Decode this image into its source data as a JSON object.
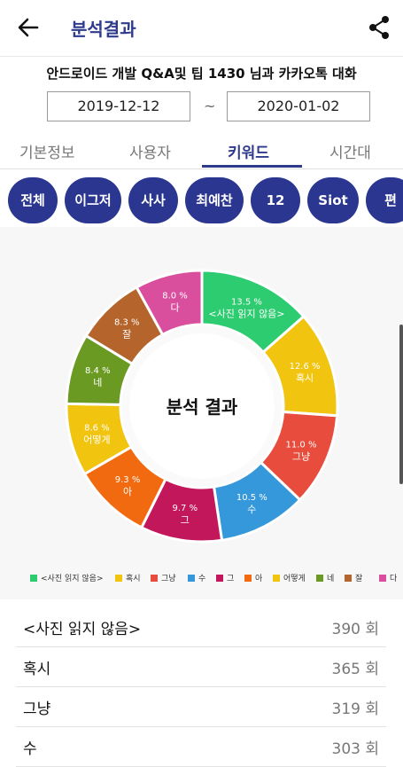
{
  "appbar": {
    "title": "분석결과",
    "back_icon": "arrow-left-icon",
    "share_icon": "share-icon"
  },
  "chat_name": "안드로이드 개발 Q&A및 팁 1430 님과 카카오톡 대화",
  "date_range": {
    "start": "2019-12-12",
    "separator": "~",
    "end": "2020-01-02"
  },
  "tabs": [
    {
      "label": "기본정보",
      "active": false
    },
    {
      "label": "사용자",
      "active": false
    },
    {
      "label": "키워드",
      "active": true
    },
    {
      "label": "시간대",
      "active": false
    }
  ],
  "filters": [
    "전체",
    "이그저",
    "사사",
    "최예찬",
    "12",
    "Siot",
    "편"
  ],
  "chart_data": {
    "type": "pie",
    "donut": true,
    "title": "분석 결과",
    "categories": [
      "<사진 읽지 않음>",
      "혹시",
      "그냥",
      "수",
      "그",
      "아",
      "어떻게",
      "네",
      "잘",
      "다"
    ],
    "values": [
      13.5,
      12.6,
      11.0,
      10.5,
      9.7,
      9.3,
      8.6,
      8.4,
      8.3,
      8.0
    ],
    "slice_labels": [
      "13.5 %",
      "12.6 %",
      "11.0 %",
      "10.5 %",
      "9.7 %",
      "9.3 %",
      "8.6 %",
      "8.4 %",
      "8.3 %",
      "8.0 %"
    ],
    "colors": [
      "#2ecc71",
      "#f1c40f",
      "#e74c3c",
      "#3498db",
      "#c2185b",
      "#f26a0f",
      "#f1c40f",
      "#6b9a22",
      "#b5652b",
      "#d94f9d"
    ],
    "legend_position": "bottom"
  },
  "keyword_list": [
    {
      "label": "<사진 읽지 않음>",
      "count": "390 회"
    },
    {
      "label": "혹시",
      "count": "365 회"
    },
    {
      "label": "그냥",
      "count": "319 회"
    },
    {
      "label": "수",
      "count": "303 회"
    }
  ]
}
